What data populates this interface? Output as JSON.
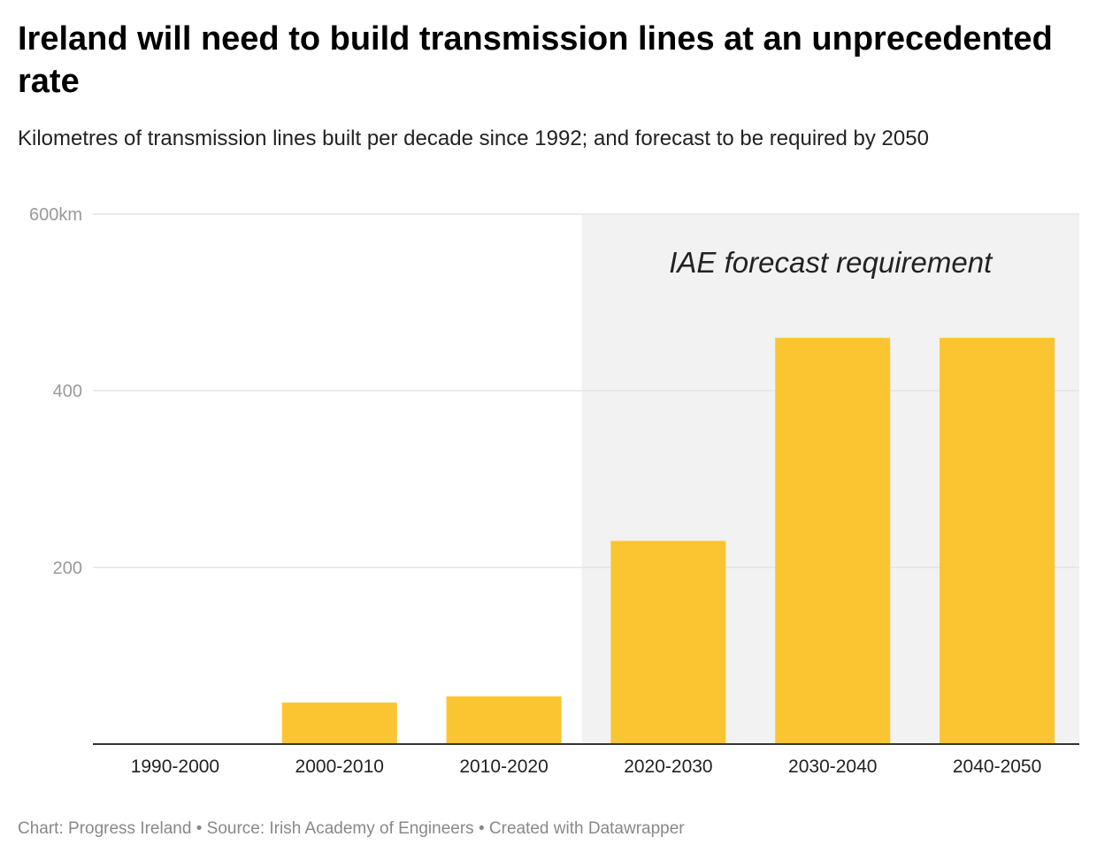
{
  "title": "Ireland will need to build transmission lines at an unprecedented rate",
  "subtitle": "Kilometres of transmission lines built per decade since 1992; and forecast to be required by 2050",
  "footer": {
    "chart_credit": "Chart: Progress Ireland",
    "source": "Source: Irish Academy of Engineers",
    "tool": "Created with Datawrapper",
    "separator": " • "
  },
  "colors": {
    "bar": "#FBC531",
    "forecast_band": "#F2F2F2",
    "grid": "#E4E4E4",
    "axis": "#333333"
  },
  "chart_data": {
    "type": "bar",
    "title": "Ireland will need to build transmission lines at an unprecedented rate",
    "subtitle": "Kilometres of transmission lines built per decade since 1992; and forecast to be required by 2050",
    "categories": [
      "1990-2000",
      "2000-2010",
      "2010-2020",
      "2020-2030",
      "2030-2040",
      "2040-2050"
    ],
    "values": [
      0,
      47,
      54,
      230,
      460,
      460
    ],
    "ylim": [
      0,
      600
    ],
    "yticks": [
      {
        "value": 200,
        "label": "200"
      },
      {
        "value": 400,
        "label": "400"
      },
      {
        "value": 600,
        "label": "600km"
      }
    ],
    "grid": true,
    "legend": "none",
    "annotations": [
      {
        "text": "IAE forecast requirement",
        "region_start_category": "2020-2030",
        "region_end_category": "2040-2050"
      }
    ]
  }
}
